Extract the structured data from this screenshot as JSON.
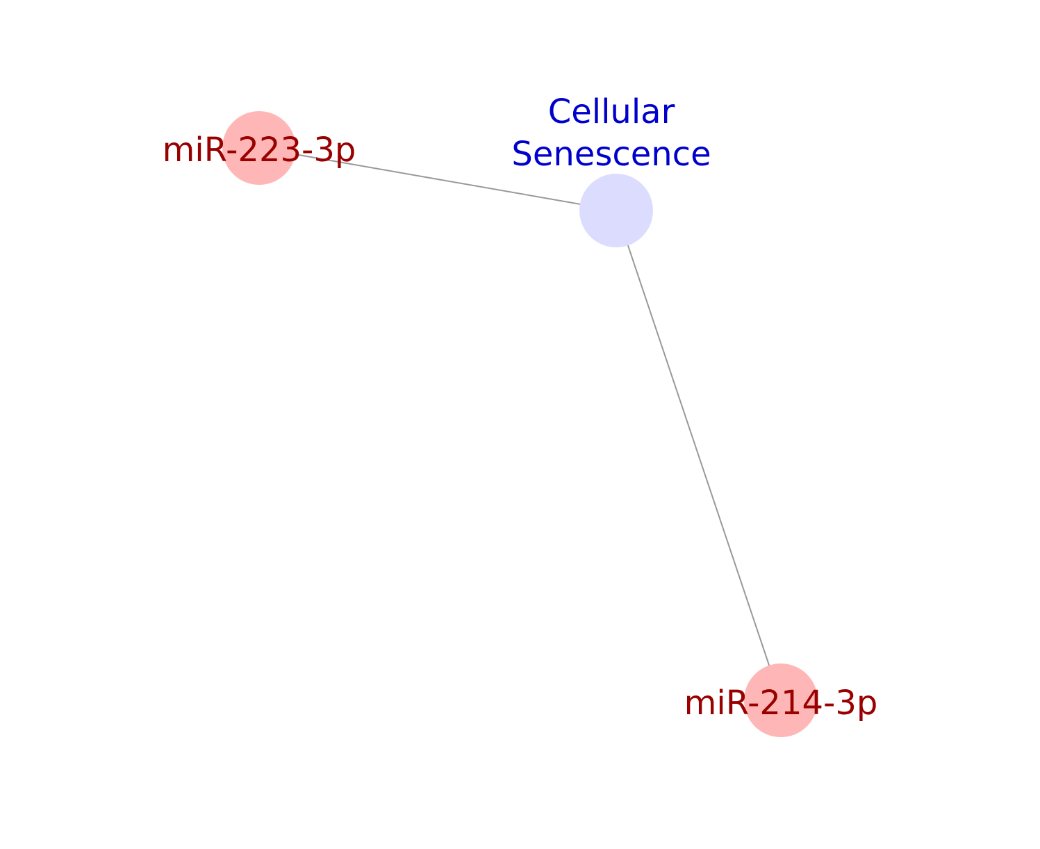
{
  "colors": {
    "background": "#ffffff",
    "edge": "#999999",
    "mirna_node_fill": "#ffb6b6",
    "mirna_label": "#990000",
    "pathway_node_fill": "#dcdcff",
    "pathway_label": "#0000cc"
  },
  "nodes": [
    {
      "id": "cellular-senescence",
      "type": "pathway",
      "label_lines": [
        "Cellular",
        "Senescence"
      ]
    },
    {
      "id": "mir-223-3p",
      "type": "mirna",
      "label_lines": [
        "miR-223-3p"
      ]
    },
    {
      "id": "mir-214-3p",
      "type": "mirna",
      "label_lines": [
        "miR-214-3p"
      ]
    }
  ],
  "edges": [
    {
      "source": "mir-223-3p",
      "target": "cellular-senescence"
    },
    {
      "source": "cellular-senescence",
      "target": "mir-214-3p"
    }
  ]
}
